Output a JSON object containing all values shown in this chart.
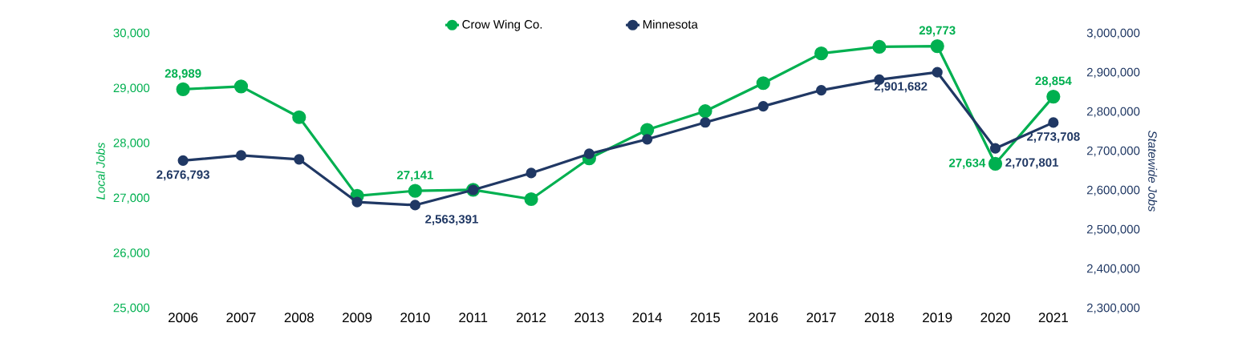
{
  "chart_data": {
    "type": "line",
    "categories": [
      "2006",
      "2007",
      "2008",
      "2009",
      "2010",
      "2011",
      "2012",
      "2013",
      "2014",
      "2015",
      "2016",
      "2017",
      "2018",
      "2019",
      "2020",
      "2021"
    ],
    "series": [
      {
        "name": "Crow Wing Co.",
        "color": "#00b050",
        "axis": "y",
        "values": [
          28989,
          29040,
          28480,
          27050,
          27141,
          27160,
          26990,
          27730,
          28250,
          28590,
          29100,
          29640,
          29760,
          29773,
          27634,
          28854
        ],
        "value_labels": [
          "28,989",
          null,
          null,
          null,
          "27,141",
          null,
          null,
          null,
          null,
          null,
          null,
          null,
          null,
          "29,773",
          "27,634",
          "28,854"
        ]
      },
      {
        "name": "Minnesota",
        "color": "#203864",
        "axis": "y2",
        "values": [
          2676793,
          2690000,
          2680000,
          2571000,
          2563391,
          2602000,
          2645000,
          2694000,
          2731000,
          2774000,
          2815000,
          2856000,
          2883000,
          2901682,
          2707801,
          2773708
        ],
        "value_labels": [
          "2,676,793",
          null,
          null,
          null,
          "2,563,391",
          null,
          null,
          null,
          null,
          null,
          null,
          null,
          null,
          "2,901,682",
          "2,707,801",
          "2,773,708"
        ]
      }
    ],
    "ylabel": "Local Jobs",
    "y2label": "Statewide Jobs",
    "ylim": [
      25000,
      30000
    ],
    "yticks": [
      {
        "value": 25000,
        "label": "25,000"
      },
      {
        "value": 26000,
        "label": "26,000"
      },
      {
        "value": 27000,
        "label": "27,000"
      },
      {
        "value": 28000,
        "label": "28,000"
      },
      {
        "value": 29000,
        "label": "29,000"
      },
      {
        "value": 30000,
        "label": "30,000"
      }
    ],
    "y2lim": [
      2300000,
      3000000
    ],
    "y2ticks": [
      {
        "value": 2300000,
        "label": "2,300,000"
      },
      {
        "value": 2400000,
        "label": "2,400,000"
      },
      {
        "value": 2500000,
        "label": "2,500,000"
      },
      {
        "value": 2600000,
        "label": "2,600,000"
      },
      {
        "value": 2700000,
        "label": "2,700,000"
      },
      {
        "value": 2800000,
        "label": "2,800,000"
      },
      {
        "value": 2900000,
        "label": "2,900,000"
      },
      {
        "value": 3000000,
        "label": "3,000,000"
      }
    ],
    "legend": "top",
    "marker": "circle",
    "line_style": "solid",
    "grid": false
  }
}
